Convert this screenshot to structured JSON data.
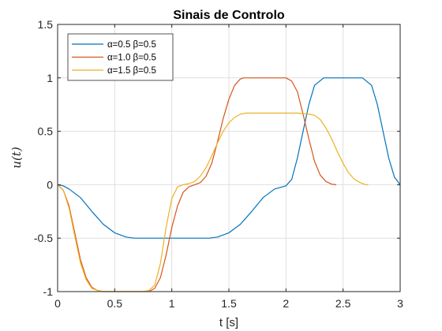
{
  "chart_data": {
    "type": "line",
    "title": "Sinais de Controlo",
    "xlabel": "t [s]",
    "ylabel": "u(t)",
    "xlim": [
      0,
      3
    ],
    "ylim": [
      -1,
      1.5
    ],
    "xticks": [
      0,
      0.5,
      1,
      1.5,
      2,
      2.5,
      3
    ],
    "xtick_labels": [
      "0",
      "0.5",
      "1",
      "1.5",
      "2",
      "2.5",
      "3"
    ],
    "yticks": [
      -1,
      -0.5,
      0,
      0.5,
      1,
      1.5
    ],
    "ytick_labels": [
      "-1",
      "-0.5",
      "0",
      "0.5",
      "1",
      "1.5"
    ],
    "grid": true,
    "legend_position": "top-left",
    "series": [
      {
        "name": "α=0.5  β=0.5",
        "color": "#0072BD",
        "x": [
          0,
          0.05,
          0.1,
          0.2,
          0.3,
          0.4,
          0.5,
          0.6,
          0.67,
          0.8,
          1.0,
          1.2,
          1.33,
          1.4,
          1.5,
          1.6,
          1.7,
          1.8,
          1.9,
          2.0,
          2.05,
          2.1,
          2.15,
          2.2,
          2.25,
          2.33,
          2.4,
          2.5,
          2.6,
          2.67,
          2.75,
          2.8,
          2.85,
          2.9,
          2.95,
          3.0
        ],
        "y": [
          0,
          -0.01,
          -0.04,
          -0.12,
          -0.25,
          -0.37,
          -0.45,
          -0.49,
          -0.5,
          -0.5,
          -0.5,
          -0.5,
          -0.5,
          -0.49,
          -0.45,
          -0.37,
          -0.25,
          -0.12,
          -0.04,
          -0.01,
          0.05,
          0.25,
          0.5,
          0.75,
          0.93,
          1.0,
          1.0,
          1.0,
          1.0,
          1.0,
          0.93,
          0.75,
          0.5,
          0.25,
          0.07,
          0
        ]
      },
      {
        "name": "α=1.0  β=0.5",
        "color": "#D95319",
        "x": [
          0,
          0.05,
          0.1,
          0.15,
          0.2,
          0.25,
          0.3,
          0.35,
          0.4,
          0.8,
          0.85,
          0.9,
          0.95,
          1.0,
          1.05,
          1.1,
          1.15,
          1.2,
          1.25,
          1.3,
          1.35,
          1.4,
          1.45,
          1.5,
          1.55,
          1.6,
          1.63,
          1.7,
          1.8,
          1.9,
          2.0,
          2.05,
          2.1,
          2.15,
          2.2,
          2.25,
          2.3,
          2.35,
          2.4,
          2.44
        ],
        "y": [
          0,
          -0.05,
          -0.2,
          -0.45,
          -0.7,
          -0.87,
          -0.96,
          -0.99,
          -1.0,
          -1.0,
          -0.97,
          -0.87,
          -0.66,
          -0.4,
          -0.2,
          -0.07,
          -0.02,
          0.0,
          0.02,
          0.08,
          0.2,
          0.4,
          0.62,
          0.8,
          0.93,
          0.99,
          1.0,
          1.0,
          1.0,
          1.0,
          1.0,
          0.97,
          0.87,
          0.66,
          0.43,
          0.22,
          0.09,
          0.03,
          0.005,
          0
        ]
      },
      {
        "name": "α=1.5  β=0.5",
        "color": "#EDB120",
        "x": [
          0,
          0.05,
          0.1,
          0.15,
          0.2,
          0.25,
          0.3,
          0.35,
          0.4,
          0.45,
          0.75,
          0.8,
          0.85,
          0.9,
          0.95,
          1.0,
          1.05,
          1.1,
          1.15,
          1.2,
          1.25,
          1.3,
          1.35,
          1.4,
          1.45,
          1.5,
          1.55,
          1.6,
          1.65,
          1.7,
          1.8,
          1.9,
          2.0,
          2.1,
          2.2,
          2.25,
          2.3,
          2.35,
          2.4,
          2.45,
          2.5,
          2.55,
          2.6,
          2.65,
          2.7,
          2.72
        ],
        "y": [
          0,
          -0.05,
          -0.22,
          -0.48,
          -0.73,
          -0.89,
          -0.97,
          -0.99,
          -1.0,
          -1.0,
          -1.0,
          -0.99,
          -0.94,
          -0.74,
          -0.4,
          -0.13,
          -0.02,
          0.0,
          0.01,
          0.03,
          0.08,
          0.16,
          0.27,
          0.39,
          0.5,
          0.58,
          0.63,
          0.66,
          0.67,
          0.67,
          0.67,
          0.67,
          0.67,
          0.67,
          0.66,
          0.65,
          0.61,
          0.53,
          0.43,
          0.31,
          0.2,
          0.11,
          0.05,
          0.02,
          0.0,
          0
        ]
      }
    ]
  }
}
